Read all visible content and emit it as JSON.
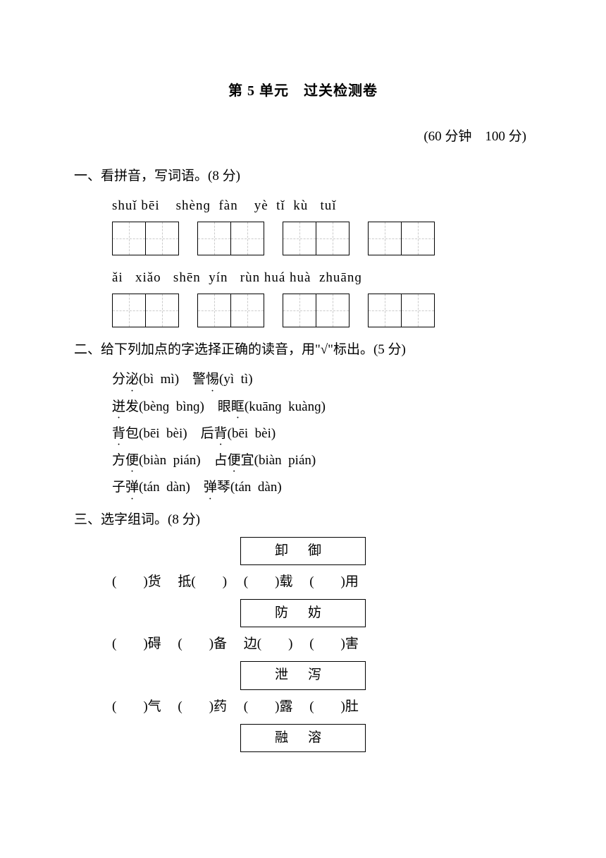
{
  "title": "第 5 单元　过关检测卷",
  "meta": "(60 分钟　100 分)",
  "s1": {
    "head": "一、看拼音，写词语。(8 分)",
    "row1_pinyin": "shuǐ bēi    shènɡ  fàn    yè  tǐ  kù   tuǐ",
    "row2_pinyin": "ǎi   xiǎo   shēn  yín   rùn huá huà  zhuānɡ",
    "row1_boxes": [
      2,
      2,
      2,
      2
    ],
    "row2_boxes": [
      2,
      2,
      2,
      2
    ]
  },
  "s2": {
    "head": "二、给下列加点的字选择正确的读音，用\"√\"标出。(5 分)",
    "lines": [
      {
        "t": "分",
        "d": "泌",
        "rest": "(bì  mì)　警",
        "d2": "惕",
        "rest2": "(yì  tì)"
      },
      {
        "t": "",
        "d": "迸",
        "rest": "发(bènɡ  bìnɡ)　眼",
        "d2": "眶",
        "rest2": "(kuānɡ  kuànɡ)"
      },
      {
        "t": "",
        "d": "背",
        "rest": "包(bēi  bèi)　后",
        "d2": "背",
        "rest2": "(bēi  bèi)"
      },
      {
        "t": "方",
        "d": "便",
        "rest": "(biàn  pián)　占",
        "d2": "便",
        "rest2": "宜(biàn  pián)"
      },
      {
        "t": "子",
        "d": "弹",
        "rest": "(tán  dàn)　",
        "d2": "弹",
        "rest2": "琴(tán  dàn)"
      }
    ]
  },
  "s3": {
    "head": "三、选字组词。(8 分)",
    "groups": [
      {
        "chars": "卸御",
        "blanks": "(　　)货　 抵(　　)　 (　　)载　 (　　)用"
      },
      {
        "chars": "防妨",
        "blanks": "(　　)碍　 (　　)备　 边(　　)　 (　　)害"
      },
      {
        "chars": "泄泻",
        "blanks": "(　　)气　 (　　)药　 (　　)露　 (　　)肚"
      },
      {
        "chars": "融溶",
        "blanks": ""
      }
    ]
  },
  "colors": {
    "text": "#000000",
    "background": "#ffffff",
    "dashed_grid": "#cccccc"
  },
  "fonts": {
    "body_size_pt": 14,
    "title_size_pt": 15,
    "family": "SimSun"
  }
}
